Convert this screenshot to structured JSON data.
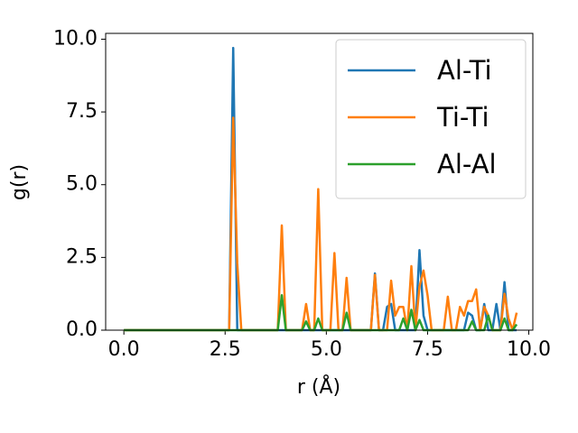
{
  "chart_data": {
    "type": "line",
    "x_label": "r (Å)",
    "y_label": "g(r)",
    "x": [
      0,
      0.1,
      0.2,
      0.3,
      0.4,
      0.5,
      0.6,
      0.7,
      0.8,
      0.9,
      1.0,
      1.1,
      1.2,
      1.3,
      1.4,
      1.5,
      1.6,
      1.7,
      1.8,
      1.9,
      2.0,
      2.1,
      2.2,
      2.3,
      2.4,
      2.5,
      2.6,
      2.7,
      2.8,
      2.9,
      3.0,
      3.1,
      3.2,
      3.3,
      3.4,
      3.5,
      3.6,
      3.7,
      3.8,
      3.9,
      4.0,
      4.1,
      4.2,
      4.3,
      4.4,
      4.5,
      4.6,
      4.7,
      4.8,
      4.9,
      5.0,
      5.1,
      5.2,
      5.3,
      5.4,
      5.5,
      5.6,
      5.7,
      5.8,
      5.9,
      6.0,
      6.1,
      6.2,
      6.3,
      6.4,
      6.5,
      6.6,
      6.7,
      6.8,
      6.9,
      7.0,
      7.1,
      7.2,
      7.3,
      7.4,
      7.5,
      7.6,
      7.7,
      7.8,
      7.9,
      8.0,
      8.1,
      8.2,
      8.3,
      8.4,
      8.5,
      8.6,
      8.7,
      8.8,
      8.9,
      9.0,
      9.1,
      9.2,
      9.3,
      9.4,
      9.5,
      9.6,
      9.7
    ],
    "series": [
      {
        "name": "Al-Ti",
        "color": "#1f77b4",
        "values": [
          0,
          0,
          0,
          0,
          0,
          0,
          0,
          0,
          0,
          0,
          0,
          0,
          0,
          0,
          0,
          0,
          0,
          0,
          0,
          0,
          0,
          0,
          0,
          0,
          0,
          0,
          0,
          9.7,
          0,
          0,
          0,
          0,
          0,
          0,
          0,
          0,
          0,
          0,
          0,
          0,
          0,
          0,
          0,
          0,
          0,
          0,
          0,
          0,
          0,
          0,
          0,
          0,
          0,
          0,
          0,
          0,
          0,
          0,
          0,
          0,
          0,
          0,
          1.95,
          0,
          0,
          0.8,
          0.9,
          0,
          0,
          0,
          0,
          0,
          0,
          2.75,
          0.5,
          0,
          0,
          0,
          0,
          0,
          0,
          0,
          0,
          0,
          0,
          0.6,
          0.5,
          0,
          0,
          0.9,
          0,
          0,
          0.9,
          0,
          1.65,
          0,
          0,
          0
        ]
      },
      {
        "name": "Ti-Ti",
        "color": "#ff7f0e",
        "values": [
          0,
          0,
          0,
          0,
          0,
          0,
          0,
          0,
          0,
          0,
          0,
          0,
          0,
          0,
          0,
          0,
          0,
          0,
          0,
          0,
          0,
          0,
          0,
          0,
          0,
          0,
          0,
          7.3,
          2.3,
          0,
          0,
          0,
          0,
          0,
          0,
          0,
          0,
          0,
          0,
          3.6,
          0,
          0,
          0,
          0,
          0,
          0.9,
          0,
          0,
          4.85,
          0,
          0,
          0,
          2.65,
          0,
          0,
          1.8,
          0,
          0,
          0,
          0,
          0,
          0,
          1.9,
          0,
          0,
          0,
          1.7,
          0.5,
          0.8,
          0.8,
          0,
          2.2,
          0,
          1.5,
          2.05,
          1.2,
          0,
          0,
          0,
          0,
          1.15,
          0,
          0,
          0.8,
          0.5,
          1.0,
          1.0,
          1.4,
          0,
          0.8,
          0.5,
          0,
          0,
          0,
          1.25,
          0.4,
          0,
          0.6
        ]
      },
      {
        "name": "Al-Al",
        "color": "#2ca02c",
        "values": [
          0,
          0,
          0,
          0,
          0,
          0,
          0,
          0,
          0,
          0,
          0,
          0,
          0,
          0,
          0,
          0,
          0,
          0,
          0,
          0,
          0,
          0,
          0,
          0,
          0,
          0,
          0,
          0,
          0,
          0,
          0,
          0,
          0,
          0,
          0,
          0,
          0,
          0,
          0,
          1.2,
          0,
          0,
          0,
          0,
          0,
          0.3,
          0,
          0,
          0.4,
          0,
          0,
          0,
          0,
          0,
          0,
          0.6,
          0,
          0,
          0,
          0,
          0,
          0,
          0,
          0,
          0,
          0,
          0,
          0,
          0,
          0.4,
          0,
          0.7,
          0,
          0.35,
          0,
          0,
          0,
          0,
          0,
          0,
          0,
          0,
          0,
          0,
          0,
          0,
          0.3,
          0,
          0,
          0,
          0.5,
          0,
          0,
          0,
          0.4,
          0,
          0,
          0.2
        ]
      }
    ],
    "xlim": [
      -0.45,
      10.1
    ],
    "ylim": [
      0,
      10.2
    ],
    "xticks": [
      {
        "value": 0,
        "label": "0.0"
      },
      2.5,
      {
        "value": 5,
        "label": "5.0"
      },
      7.5,
      {
        "value": 10,
        "label": "10.0"
      }
    ],
    "yticks": [
      {
        "value": 0,
        "label": "0.0"
      },
      2.5,
      {
        "value": 5,
        "label": "5.0"
      },
      7.5,
      {
        "value": 10,
        "label": "10.0"
      }
    ],
    "grid": false,
    "legend": "upper right"
  }
}
